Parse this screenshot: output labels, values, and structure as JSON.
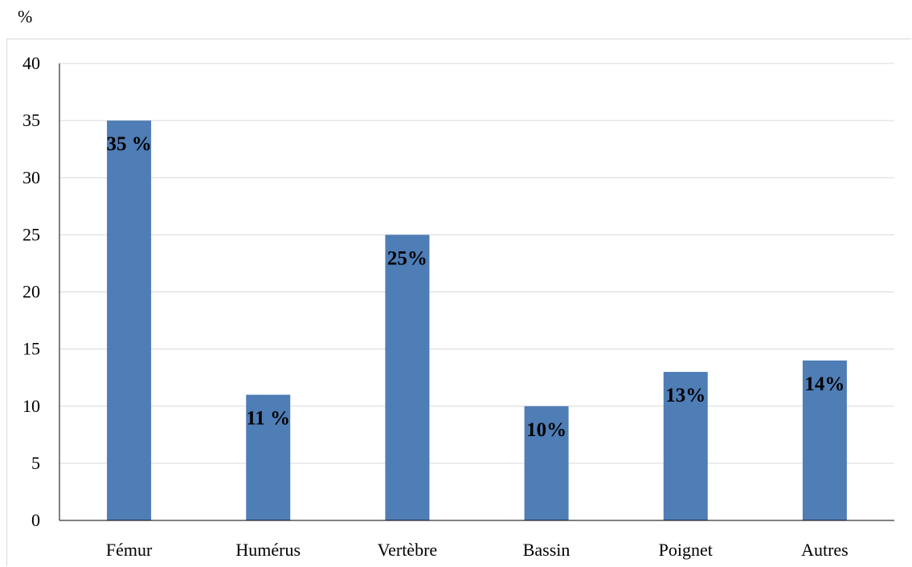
{
  "unit_label": "%",
  "colors": {
    "bar": "#4f7db6",
    "grid": "#d9d9d9",
    "axis": "#000000"
  },
  "chart_data": {
    "type": "bar",
    "categories": [
      "Fémur",
      "Humérus",
      "Vertèbre",
      "Bassin",
      "Poignet",
      "Autres"
    ],
    "values": [
      35,
      11,
      25,
      10,
      13,
      14
    ],
    "data_labels": [
      "35 %",
      "11 %",
      "25%",
      "10%",
      "13%",
      "14%"
    ],
    "yticks": [
      "0",
      "5",
      "10",
      "15",
      "20",
      "25",
      "30",
      "35",
      "40"
    ],
    "ylim": [
      0,
      40
    ],
    "grid": true,
    "legend": "none"
  }
}
